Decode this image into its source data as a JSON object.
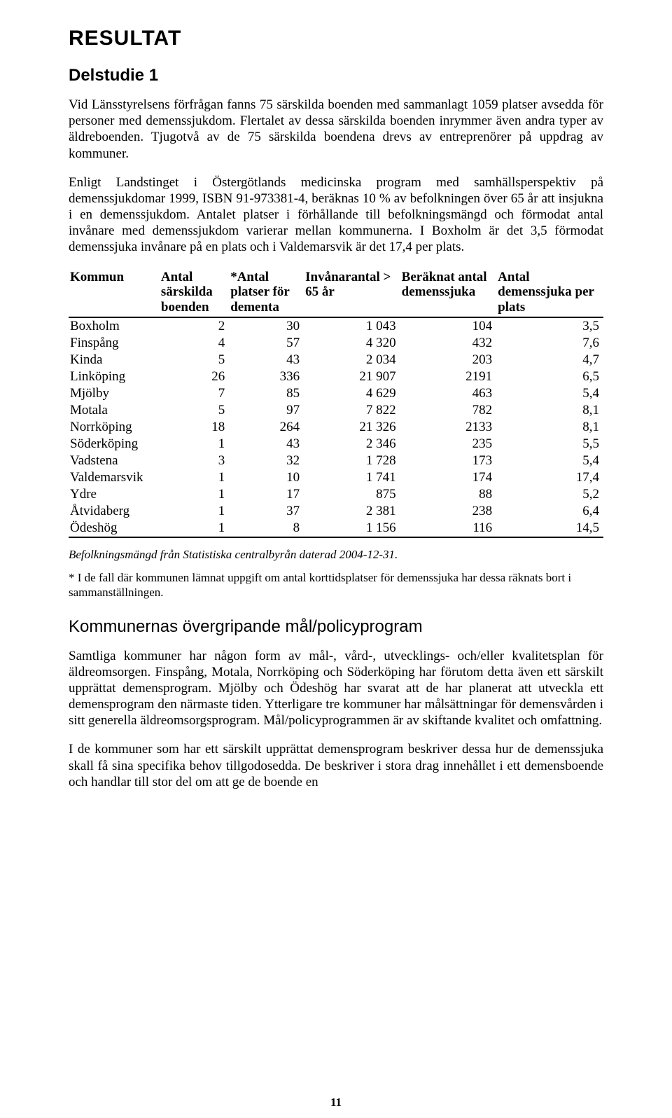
{
  "typography": {
    "body_font": "Garamond",
    "heading_font": "Arial Narrow",
    "body_size_pt": 14,
    "heading_size_pt": 18
  },
  "colors": {
    "text": "#000000",
    "background": "#ffffff",
    "rule": "#000000"
  },
  "title": "RESULTAT",
  "subtitle": "Delstudie 1",
  "para1": "Vid Länsstyrelsens förfrågan fanns 75 särskilda boenden med sammanlagt 1059 platser avsedda för personer med demenssjukdom. Flertalet av dessa särskilda boenden inrymmer även andra typer av äldreboenden. Tjugotvå av de 75 särskilda boendena drevs av entreprenörer på uppdrag av kommuner.",
  "para2": "Enligt Landstinget i Östergötlands medicinska program med samhällsperspektiv på demenssjukdomar 1999, ISBN 91-973381-4, beräknas 10 % av befolkningen över 65 år att insjukna i en demenssjukdom. Antalet platser i förhållande till befolkningsmängd och förmodat antal invånare med demenssjukdom varierar mellan kommunerna. I Boxholm är det 3,5 förmodat demenssjuka invånare på en plats och i Valdemarsvik är det 17,4 per plats.",
  "table": {
    "type": "table",
    "col_widths_pct": [
      17,
      13,
      14,
      18,
      18,
      20
    ],
    "columns": [
      "Kommun",
      "Antal särskilda boenden",
      "*Antal platser för dementa",
      "Invånarantal > 65 år",
      "Beräknat antal demenssjuka",
      "Antal demenssjuka per plats"
    ],
    "rows": [
      [
        "Boxholm",
        "2",
        "30",
        "1 043",
        "104",
        "3,5"
      ],
      [
        "Finspång",
        "4",
        "57",
        "4 320",
        "432",
        "7,6"
      ],
      [
        "Kinda",
        "5",
        "43",
        "2 034",
        "203",
        "4,7"
      ],
      [
        "Linköping",
        "26",
        "336",
        "21 907",
        "2191",
        "6,5"
      ],
      [
        "Mjölby",
        "7",
        "85",
        "4 629",
        "463",
        "5,4"
      ],
      [
        "Motala",
        "5",
        "97",
        "7 822",
        "782",
        "8,1"
      ],
      [
        "Norrköping",
        "18",
        "264",
        "21 326",
        "2133",
        "8,1"
      ],
      [
        "Söderköping",
        "1",
        "43",
        "2 346",
        "235",
        "5,5"
      ],
      [
        "Vadstena",
        "3",
        "32",
        "1 728",
        "173",
        "5,4"
      ],
      [
        "Valdemarsvik",
        "1",
        "10",
        "1 741",
        "174",
        "17,4"
      ],
      [
        "Ydre",
        "1",
        "17",
        "875",
        "88",
        "5,2"
      ],
      [
        "Åtvidaberg",
        "1",
        "37",
        "2 381",
        "238",
        "6,4"
      ],
      [
        "Ödeshög",
        "1",
        "8",
        "1 156",
        "116",
        "14,5"
      ]
    ]
  },
  "note_italic": "Befolkningsmängd från Statistiska centralbyrån daterad 2004-12-31.",
  "note_small": "* I de fall där kommunen lämnat uppgift om antal korttidsplatser för demenssjuka har dessa räknats bort i sammanställningen.",
  "section_heading": "Kommunernas övergripande mål/policyprogram",
  "para3": "Samtliga kommuner har någon form av mål-, vård-, utvecklings- och/eller kvalitetsplan för äldreomsorgen. Finspång, Motala, Norrköping och Söderköping har förutom detta även ett särskilt upprättat demensprogram. Mjölby och Ödeshög har svarat att de har planerat att utveckla ett demensprogram den närmaste tiden. Ytterligare tre kommuner har målsättningar för demensvården i sitt generella äldreomsorgsprogram. Mål/policyprogrammen är av skiftande kvalitet och omfattning.",
  "para4": "I de kommuner som har ett särskilt upprättat demensprogram beskriver dessa hur de demenssjuka skall få sina specifika behov tillgodosedda. De beskriver i stora drag innehållet i ett demensboende och handlar till stor del om att ge de boende en",
  "page_number": "11"
}
